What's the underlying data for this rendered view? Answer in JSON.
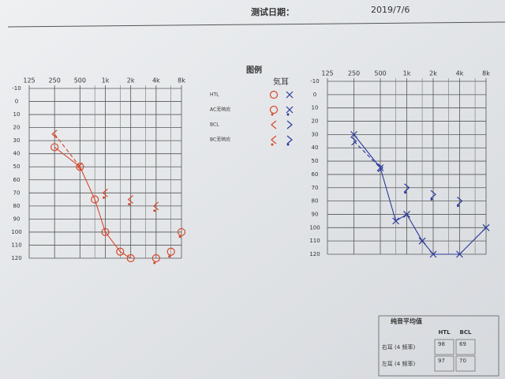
{
  "header": {
    "date_label": "测试日期：",
    "date": "2019/7/6"
  },
  "legend": {
    "title": "图例",
    "column_header": "気耳",
    "rows": [
      "HTL",
      "AC无响应",
      "BCL",
      "BC无响应"
    ]
  },
  "table": {
    "title": "纯音平均值",
    "columns": [
      "HTL",
      "BCL"
    ],
    "rows": [
      [
        "右耳 (4 频率)",
        "98",
        "69"
      ],
      [
        "左耳 (4 频率)",
        "97",
        "70"
      ]
    ]
  },
  "chart_data": [
    {
      "type": "line",
      "xscale": "log",
      "invert_y": true,
      "grid": true,
      "x": [
        250,
        500,
        750,
        1000,
        1500,
        2000,
        4000,
        6000,
        8000
      ],
      "xlim": [
        125,
        8000
      ],
      "xticks": [
        125,
        250,
        500,
        {
          "value": 1000,
          "label": "1k"
        },
        {
          "value": 2000,
          "label": "2k"
        },
        {
          "value": 4000,
          "label": "4k"
        },
        {
          "value": 8000,
          "label": "8k"
        }
      ],
      "minor_xticks": [
        750,
        1500,
        3000,
        6000
      ],
      "ylim": [
        -10,
        120
      ],
      "yticks": [
        -10,
        0,
        10,
        20,
        30,
        40,
        50,
        60,
        70,
        80,
        90,
        100,
        110,
        120
      ],
      "series": [
        {
          "color": "#d9472b",
          "marker": "circle",
          "line": "solid",
          "values": [
            35,
            50,
            75,
            100,
            115,
            120,
            null,
            null,
            null
          ]
        },
        {
          "color": "#d9472b",
          "marker": "circle-nr",
          "line": "none",
          "values": [
            null,
            null,
            null,
            null,
            null,
            null,
            120,
            115,
            100
          ]
        },
        {
          "color": "#d9472b",
          "marker": "lt",
          "line": "dashed",
          "values": [
            25,
            50,
            null,
            null,
            null,
            null,
            null,
            null,
            null
          ]
        },
        {
          "color": "#d9472b",
          "marker": "lt-nr",
          "line": "none",
          "values": [
            null,
            null,
            null,
            70,
            null,
            75,
            80,
            null,
            null
          ]
        }
      ]
    },
    {
      "type": "line",
      "xscale": "log",
      "invert_y": true,
      "grid": true,
      "x": [
        250,
        500,
        750,
        1000,
        1500,
        2000,
        4000,
        8000
      ],
      "xlim": [
        125,
        8000
      ],
      "xticks": [
        125,
        250,
        500,
        {
          "value": 1000,
          "label": "1k"
        },
        {
          "value": 2000,
          "label": "2k"
        },
        {
          "value": 4000,
          "label": "4k"
        },
        {
          "value": 8000,
          "label": "8k"
        }
      ],
      "minor_xticks": [
        750,
        1500,
        3000,
        6000
      ],
      "ylim": [
        -10,
        120
      ],
      "yticks": [
        -10,
        0,
        10,
        20,
        30,
        40,
        50,
        60,
        70,
        80,
        90,
        100,
        110,
        120
      ],
      "series": [
        {
          "color": "#2b3a9a",
          "marker": "x",
          "line": "solid",
          "values": [
            30,
            55,
            95,
            90,
            110,
            120,
            120,
            100
          ]
        },
        {
          "color": "#2b3a9a",
          "marker": "gt",
          "line": "dashed",
          "values": [
            35,
            55,
            null,
            null,
            null,
            null,
            null,
            null
          ]
        },
        {
          "color": "#2b3a9a",
          "marker": "gt-nr",
          "line": "none",
          "values": [
            null,
            null,
            null,
            70,
            null,
            75,
            80,
            null
          ]
        }
      ]
    }
  ]
}
